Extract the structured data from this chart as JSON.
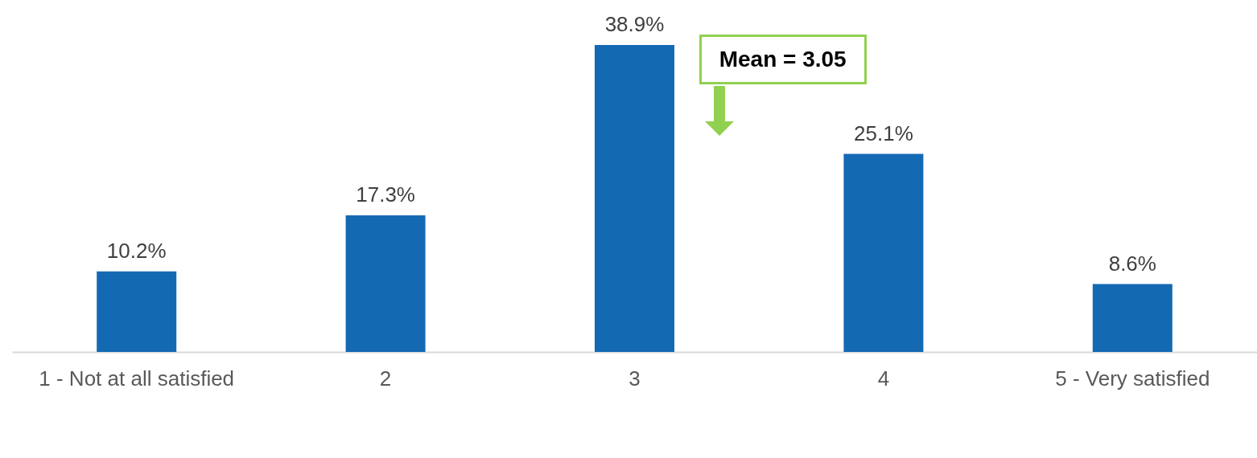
{
  "chart_data": {
    "type": "bar",
    "categories": [
      "1 - Not at all satisfied",
      "2",
      "3",
      "4",
      "5 - Very satisfied"
    ],
    "values": [
      10.2,
      17.3,
      38.9,
      25.1,
      8.6
    ],
    "color": "#1469b3",
    "value_labels": [
      "10.2%",
      "17.3%",
      "38.9%",
      "25.1%",
      "8.6%"
    ],
    "annotations": [
      "Mean = 3.05"
    ]
  }
}
